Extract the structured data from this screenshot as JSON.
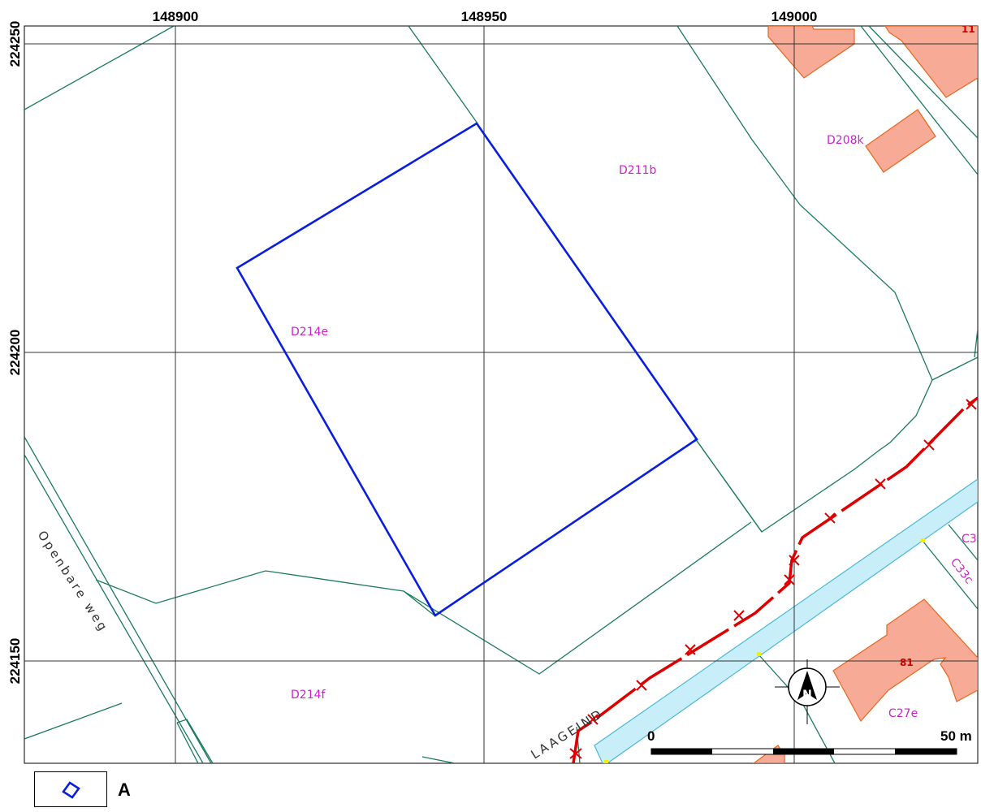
{
  "grid": {
    "x_labels": [
      "148900",
      "148950",
      "149000"
    ],
    "y_labels": [
      "224250",
      "224200",
      "224150"
    ]
  },
  "parcels": {
    "d211b": "D211b",
    "d214e": "D214e",
    "d214f": "D214f",
    "d208k": "D208k",
    "c27e": "C27e",
    "c33c": "C33c",
    "c3": "C3"
  },
  "house_numbers": {
    "n81": "81",
    "n11": "11"
  },
  "streets": {
    "openbare_weg": "Openbare weg",
    "laageind": "LAAGEIND"
  },
  "scalebar": {
    "start_label": "0",
    "end_label": "50 m"
  },
  "north_arrow": {
    "letter": "N"
  },
  "legend": {
    "label": "A"
  },
  "colors": {
    "parcel_line": "#1a7a5a",
    "selection": "#0a1ee0",
    "building_fill": "#f7aa95",
    "building_stroke": "#e8661e",
    "water_fill": "#c8eefa",
    "water_stroke": "#4ab8d8",
    "railway": "#dd0000",
    "label": "#cc22cc"
  }
}
